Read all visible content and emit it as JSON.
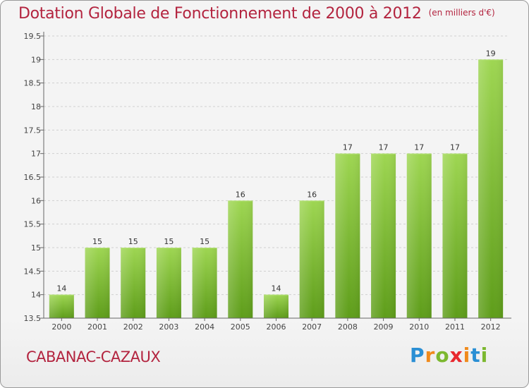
{
  "title": "Dotation Globale de Fonctionnement de 2000 à 2012",
  "unit": "(en milliers d'€)",
  "commune": "CABANAC-CAZAUX",
  "logo": {
    "letters": [
      "P",
      "r",
      "o",
      "x",
      "i",
      "t",
      "i"
    ],
    "colors": [
      "#2a8fd4",
      "#f08a1c",
      "#7cb82f",
      "#e8282e",
      "#f08a1c",
      "#2a8fd4",
      "#7cb82f"
    ]
  },
  "colors": {
    "title": "#b3243f",
    "bar_top": "#9ed652",
    "bar_bottom": "#5e9d1a",
    "grid": "#d0d0d0",
    "axis": "#666666"
  },
  "chart_data": {
    "type": "bar",
    "categories": [
      "2000",
      "2001",
      "2002",
      "2003",
      "2004",
      "2005",
      "2006",
      "2007",
      "2008",
      "2009",
      "2010",
      "2011",
      "2012"
    ],
    "values": [
      14,
      15,
      15,
      15,
      15,
      16,
      14,
      16,
      17,
      17,
      17,
      17,
      19
    ],
    "data_labels": [
      "14",
      "15",
      "15",
      "15",
      "15",
      "16",
      "14",
      "16",
      "17",
      "17",
      "17",
      "17",
      "19"
    ],
    "yticks": [
      "13.5",
      "14",
      "14.5",
      "15",
      "15.5",
      "16",
      "16.5",
      "17",
      "17.5",
      "18",
      "18.5",
      "19",
      "19.5"
    ],
    "ylim": [
      13.5,
      19.5
    ],
    "grid": true,
    "grid_style": "dashed horizontal"
  }
}
